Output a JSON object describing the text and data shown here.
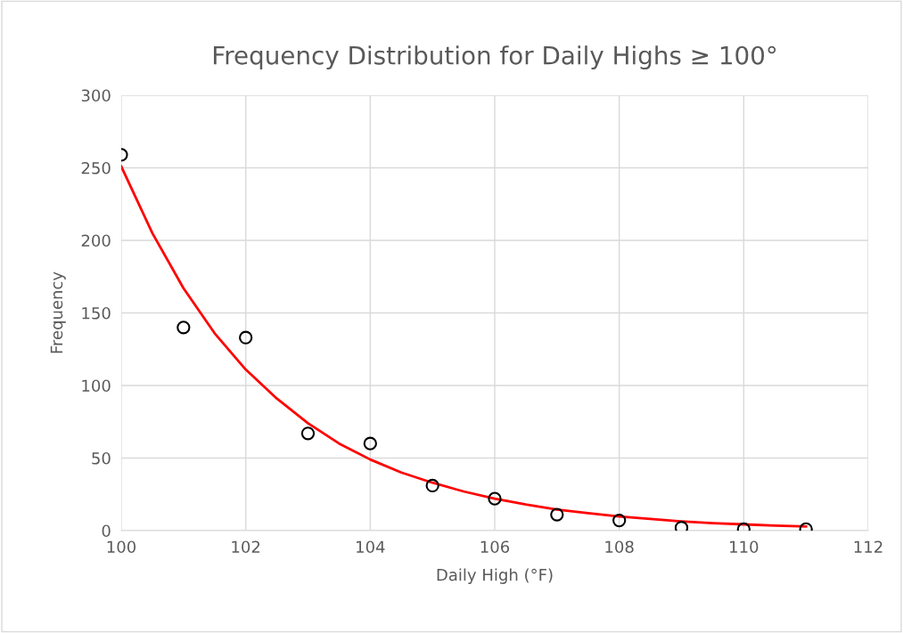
{
  "chart_data": {
    "type": "scatter",
    "title": "Frequency Distribution for Daily Highs ≥ 100°",
    "xlabel": "Daily High (°F)",
    "ylabel": "Frequency",
    "series": [
      {
        "color": "#000000",
        "marker": "circle",
        "x": [
          100,
          101,
          102,
          103,
          104,
          105,
          106,
          107,
          108,
          109,
          110,
          111
        ],
        "values": [
          259,
          140,
          133,
          67,
          60,
          31,
          22,
          11,
          7,
          2,
          1,
          1
        ]
      },
      {
        "type": "line",
        "color": "#ff0000",
        "marker": "none",
        "line_style": "solid",
        "x": [
          100,
          100.5,
          101,
          101.5,
          102,
          102.5,
          103,
          103.5,
          104,
          104.5,
          105,
          105.5,
          106,
          106.5,
          107,
          107.5,
          108,
          108.5,
          109,
          109.5,
          110,
          110.5,
          111
        ],
        "values": [
          251,
          205,
          167,
          136,
          111,
          91,
          74,
          60,
          49,
          40,
          33,
          27,
          22,
          18,
          14.5,
          12,
          9.7,
          8,
          6.4,
          5.2,
          4.3,
          3.5,
          2.8
        ]
      }
    ],
    "xlim": [
      100,
      112
    ],
    "xticks": [
      100,
      102,
      104,
      106,
      108,
      110,
      112
    ],
    "ylim": [
      0,
      300
    ],
    "yticks": [
      0,
      50,
      100,
      150,
      200,
      250,
      300
    ],
    "grid": true
  }
}
